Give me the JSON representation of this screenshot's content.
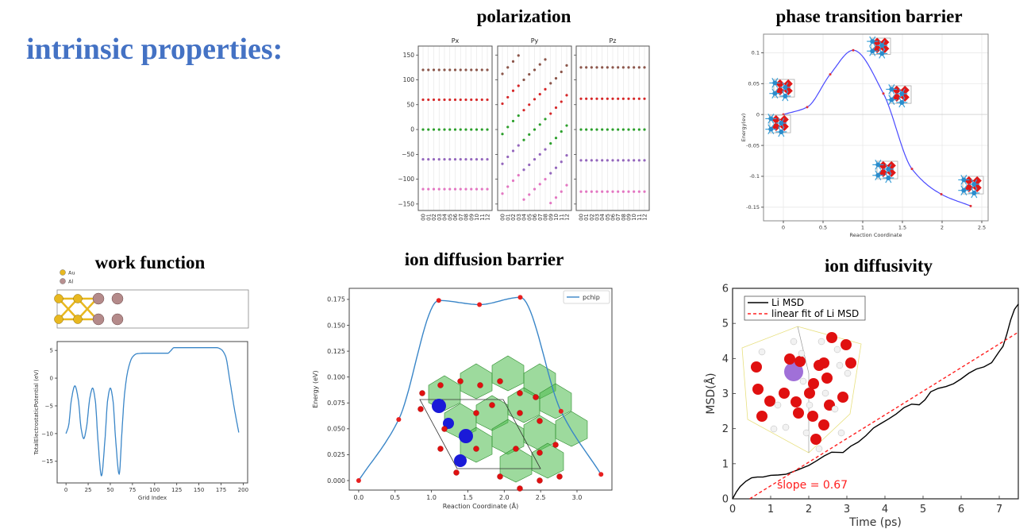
{
  "slide": {
    "heading": "intrinsic properties:",
    "accent": "#4472C4"
  },
  "panels": {
    "polarization": {
      "title": "polarization"
    },
    "phase": {
      "title": "phase transition barrier"
    },
    "work": {
      "title": "work function"
    },
    "diffusion": {
      "title": "ion diffusion barrier"
    },
    "diffusivity": {
      "title": "ion diffusivity"
    }
  },
  "chart_data": [
    {
      "id": "polarization",
      "type": "scatter",
      "categories": [
        "00",
        "01",
        "02",
        "03",
        "04",
        "05",
        "06",
        "07",
        "08",
        "09",
        "10",
        "11",
        "12"
      ],
      "yticks": [
        -150,
        -100,
        -50,
        0,
        50,
        100,
        150
      ],
      "ylim": [
        -163,
        168
      ],
      "grid": "vertical",
      "colors": [
        "#8c564b",
        "#d62728",
        "#2ca02c",
        "#9467bd",
        "#e377c2"
      ],
      "subplots": [
        {
          "title": "Px",
          "series": [
            {
              "values": [
                120,
                120,
                120,
                120,
                120,
                120,
                120,
                120,
                120,
                120,
                120,
                120,
                120
              ]
            },
            {
              "values": [
                60,
                60,
                60,
                60,
                60,
                60,
                60,
                60,
                60,
                60,
                60,
                60,
                60
              ]
            },
            {
              "values": [
                0,
                0,
                0,
                0,
                0,
                0,
                0,
                0,
                0,
                0,
                0,
                0,
                0
              ]
            },
            {
              "values": [
                -60,
                -60,
                -60,
                -60,
                -60,
                -60,
                -60,
                -60,
                -60,
                -60,
                -60,
                -60,
                -60
              ]
            },
            {
              "values": [
                -120,
                -120,
                -120,
                -120,
                -120,
                -120,
                -120,
                -120,
                -120,
                -120,
                -120,
                -120,
                -120
              ]
            }
          ]
        },
        {
          "title": "Py",
          "series": [
            {
              "values": [
                112,
                125,
                137,
                149,
                100,
                111,
                120,
                131,
                141,
                93,
                103,
                116,
                129
              ]
            },
            {
              "values": [
                52,
                65,
                78,
                88,
                39,
                50,
                61,
                71,
                81,
                32,
                44,
                56,
                69
              ]
            },
            {
              "values": [
                -9,
                5,
                17,
                28,
                -21,
                -10,
                0,
                10,
                21,
                -28,
                -17,
                -4,
                8
              ]
            },
            {
              "values": [
                -69,
                -55,
                -43,
                -32,
                -81,
                -71,
                -60,
                -50,
                -40,
                -88,
                -77,
                -65,
                -52
              ]
            },
            {
              "values": [
                -129,
                -115,
                -103,
                -92,
                -141,
                -131,
                -120,
                -110,
                -100,
                -148,
                -137,
                -125,
                -112
              ]
            }
          ]
        },
        {
          "title": "Pz",
          "series": [
            {
              "values": [
                125,
                125,
                125,
                125,
                125,
                125,
                125,
                125,
                125,
                125,
                125,
                125,
                125
              ]
            },
            {
              "values": [
                62,
                62,
                62,
                62,
                62,
                62,
                62,
                62,
                62,
                62,
                62,
                62,
                62
              ]
            },
            {
              "values": [
                0,
                0,
                0,
                0,
                0,
                0,
                0,
                0,
                0,
                0,
                0,
                0,
                0
              ]
            },
            {
              "values": [
                -62,
                -62,
                -62,
                -62,
                -62,
                -62,
                -62,
                -62,
                -62,
                -62,
                -62,
                -62,
                -62
              ]
            },
            {
              "values": [
                -125,
                -125,
                -125,
                -125,
                -125,
                -125,
                -125,
                -125,
                -125,
                -125,
                -125,
                -125,
                -125
              ]
            }
          ]
        }
      ]
    },
    {
      "id": "phase",
      "type": "line",
      "xlabel": "Reaction Coordinate",
      "ylabel": "Energy(ev)",
      "x": [
        0,
        0.3,
        0.59,
        0.88,
        1.26,
        1.62,
        1.99,
        2.36
      ],
      "y": [
        0,
        0.012,
        0.065,
        0.104,
        0.034,
        -0.088,
        -0.129,
        -0.148
      ],
      "xticks": [
        0,
        0.5,
        1,
        1.5,
        2,
        2.5
      ],
      "xticklabels": [
        "0",
        "0.5",
        "1",
        "1.5",
        "2",
        "2.5"
      ],
      "yticks": [
        -0.15,
        -0.1,
        -0.05,
        0,
        0.05,
        0.1
      ],
      "yticklabels": [
        "-0.15",
        "-0.1",
        "-0.05",
        "0",
        "0.05",
        "0.1"
      ],
      "xlim": [
        -0.25,
        2.58
      ],
      "ylim": [
        -0.172,
        0.13
      ],
      "grid": true,
      "line_color": "#4a4aff",
      "marker_color": "#e0303a"
    },
    {
      "id": "work",
      "type": "line",
      "xlabel": "Grid Index",
      "ylabel": "TotalElectrostaticPotential (eV)",
      "structure_legend": [
        {
          "label": "Au",
          "color": "#e8b820"
        },
        {
          "label": "Al",
          "color": "#b89090"
        }
      ],
      "x": [
        0,
        3,
        6,
        10,
        14,
        17,
        20,
        23,
        27,
        30,
        33,
        36,
        40,
        44,
        47,
        50,
        53,
        56,
        60,
        63,
        66,
        70,
        75,
        80,
        90,
        115,
        118,
        122,
        170,
        175,
        180,
        185,
        190,
        195
      ],
      "y": [
        -10,
        -8.5,
        -4,
        -1.4,
        -4,
        -9,
        -10.9,
        -9,
        -3.5,
        -1.8,
        -4,
        -11,
        -17.6,
        -11,
        -4,
        -1.8,
        -4,
        -11,
        -17.3,
        -10,
        -3,
        1.5,
        3.8,
        4.4,
        4.5,
        4.5,
        4.9,
        5.5,
        5.5,
        5.2,
        4,
        -0.5,
        -5.5,
        -9.8
      ],
      "xticks": [
        0,
        25,
        50,
        75,
        100,
        125,
        150,
        175,
        200
      ],
      "xticklabels": [
        "0",
        "25",
        "50",
        "75",
        "100",
        "125",
        "150",
        "175",
        "200"
      ],
      "yticks": [
        -15,
        -10,
        -5,
        0,
        5
      ],
      "yticklabels": [
        "−15",
        "−10",
        "−5",
        "0",
        "5"
      ],
      "xlim": [
        -10,
        205
      ],
      "ylim": [
        -18.9,
        6.6
      ],
      "line_color": "#3a86c8"
    },
    {
      "id": "diffusion",
      "type": "line",
      "xlabel": "Reaction Coordinate (Å)",
      "ylabel": "Energy (eV)",
      "legend": "pchip",
      "x": [
        0,
        0.55,
        1.1,
        1.66,
        2.22,
        2.78,
        3.33
      ],
      "y": [
        0.0,
        0.059,
        0.174,
        0.17,
        0.177,
        0.067,
        0.006
      ],
      "xticks": [
        0,
        0.5,
        1,
        1.5,
        2,
        2.5,
        3
      ],
      "xticklabels": [
        "0.0",
        "0.5",
        "1.0",
        "1.5",
        "2.0",
        "2.5",
        "3.0"
      ],
      "yticks": [
        0,
        0.025,
        0.05,
        0.075,
        0.1,
        0.125,
        0.15,
        0.175
      ],
      "yticklabels": [
        "0.000",
        "0.025",
        "0.050",
        "0.075",
        "0.100",
        "0.125",
        "0.150",
        "0.175"
      ],
      "xlim": [
        -0.13,
        3.48
      ],
      "ylim": [
        -0.0092,
        0.1857
      ],
      "line_color": "#3a86c8",
      "marker_color": "#e82020"
    },
    {
      "id": "diffusivity",
      "type": "line",
      "xlabel": "Time (ps)",
      "ylabel": "MSD(Å)",
      "series": [
        {
          "name": "Li MSD",
          "color": "#000000",
          "x": [
            0,
            0.1,
            0.2,
            0.35,
            0.5,
            0.65,
            0.8,
            1,
            1.2,
            1.4,
            1.7,
            2,
            2.2,
            2.4,
            2.6,
            2.9,
            3.1,
            3.3,
            3.5,
            3.7,
            3.9,
            4.1,
            4.3,
            4.5,
            4.7,
            4.9,
            5.05,
            5.2,
            5.4,
            5.6,
            5.8,
            6,
            6.2,
            6.4,
            6.6,
            6.8,
            7,
            7.1,
            7.2,
            7.3,
            7.4,
            7.5
          ],
          "y": [
            0,
            0.2,
            0.35,
            0.5,
            0.6,
            0.62,
            0.62,
            0.67,
            0.68,
            0.7,
            0.82,
            0.95,
            1.08,
            1.22,
            1.33,
            1.32,
            1.5,
            1.62,
            1.8,
            2.02,
            2.15,
            2.28,
            2.42,
            2.6,
            2.7,
            2.68,
            2.82,
            3.05,
            3.15,
            3.2,
            3.28,
            3.42,
            3.58,
            3.7,
            3.76,
            3.88,
            4.2,
            4.35,
            4.7,
            5.1,
            5.4,
            5.55
          ]
        },
        {
          "name": "linear fit of Li MSD",
          "color": "#ff2020",
          "dashed": true,
          "x": [
            0.45,
            7.5
          ],
          "y": [
            0,
            4.75
          ]
        }
      ],
      "annotation": "slope = 0.67",
      "xticks": [
        0,
        1,
        2,
        3,
        4,
        5,
        6,
        7
      ],
      "xticklabels": [
        "0",
        "1",
        "2",
        "3",
        "4",
        "5",
        "6",
        "7"
      ],
      "yticks": [
        0,
        1,
        2,
        3,
        4,
        5,
        6
      ],
      "yticklabels": [
        "0",
        "1",
        "2",
        "3",
        "4",
        "5",
        "6"
      ],
      "xlim": [
        0,
        7.5
      ],
      "ylim": [
        0,
        6
      ]
    }
  ]
}
